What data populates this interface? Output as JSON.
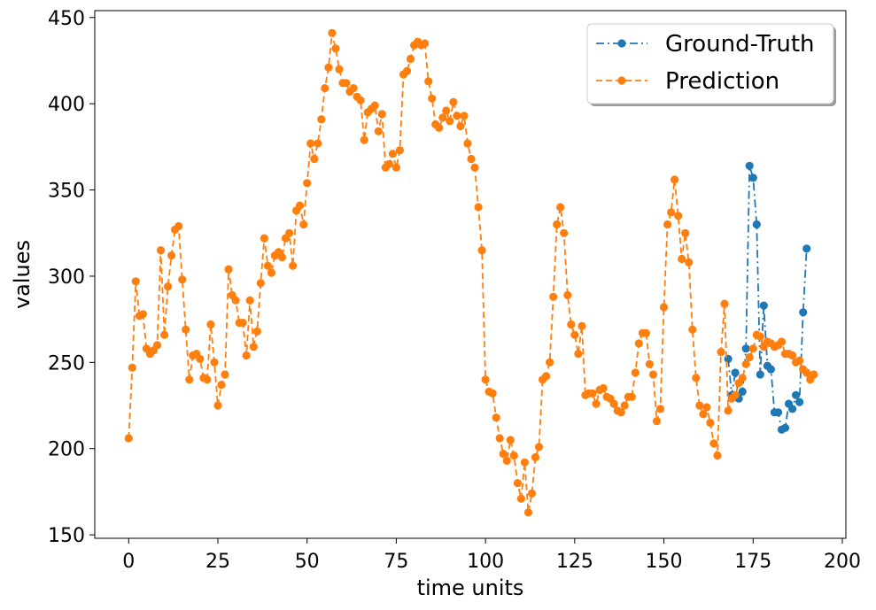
{
  "chart_data": {
    "type": "line",
    "title": "",
    "xlabel": "time units",
    "ylabel": "values",
    "xlim": [
      -9.5,
      201
    ],
    "ylim": [
      148,
      454
    ],
    "xticks": [
      0,
      25,
      50,
      75,
      100,
      125,
      150,
      175,
      200
    ],
    "yticks": [
      150,
      200,
      250,
      300,
      350,
      400,
      450
    ],
    "grid": false,
    "legend_position": "top-right",
    "series": [
      {
        "name": "Ground-Truth",
        "color": "#1f77b4",
        "line_style": "dash-dot",
        "marker": "circle",
        "x_start": 168,
        "values": [
          252,
          231,
          244,
          229,
          233,
          258,
          364,
          357,
          330,
          243,
          283,
          248,
          246,
          221,
          221,
          211,
          212,
          226,
          223,
          231,
          227,
          279,
          316
        ]
      },
      {
        "name": "Prediction",
        "color": "#ff7f0e",
        "line_style": "dashed",
        "marker": "circle",
        "x_start": 0,
        "values": [
          206,
          247,
          297,
          277,
          278,
          258,
          255,
          257,
          260,
          315,
          266,
          294,
          312,
          327,
          329,
          298,
          269,
          240,
          254,
          255,
          252,
          241,
          240,
          272,
          250,
          225,
          237,
          243,
          304,
          289,
          286,
          273,
          273,
          254,
          286,
          259,
          268,
          296,
          322,
          306,
          302,
          312,
          314,
          311,
          322,
          325,
          306,
          338,
          341,
          330,
          354,
          377,
          368,
          377,
          391,
          409,
          421,
          441,
          432,
          420,
          412,
          412,
          407,
          409,
          404,
          402,
          379,
          395,
          397,
          399,
          384,
          394,
          363,
          365,
          371,
          363,
          373,
          417,
          419,
          426,
          434,
          436,
          434,
          435,
          413,
          403,
          388,
          386,
          392,
          396,
          390,
          401,
          393,
          387,
          393,
          377,
          368,
          363,
          340,
          315,
          240,
          233,
          232,
          218,
          206,
          197,
          193,
          205,
          196,
          180,
          171,
          192,
          163,
          174,
          195,
          201,
          240,
          242,
          250,
          288,
          330,
          340,
          325,
          289,
          272,
          266,
          255,
          271,
          231,
          232,
          232,
          226,
          234,
          235,
          230,
          229,
          226,
          222,
          221,
          225,
          230,
          230,
          244,
          261,
          267,
          267,
          249,
          243,
          216,
          223,
          282,
          330,
          337,
          356,
          335,
          310,
          325,
          308,
          269,
          241,
          225,
          220,
          224,
          215,
          203,
          196,
          256,
          284,
          222,
          229,
          231,
          238,
          241,
          249,
          253,
          258,
          266,
          265,
          259,
          262,
          261,
          259,
          260,
          262,
          255,
          255,
          254,
          250,
          251,
          246,
          244,
          240,
          243
        ]
      }
    ]
  }
}
